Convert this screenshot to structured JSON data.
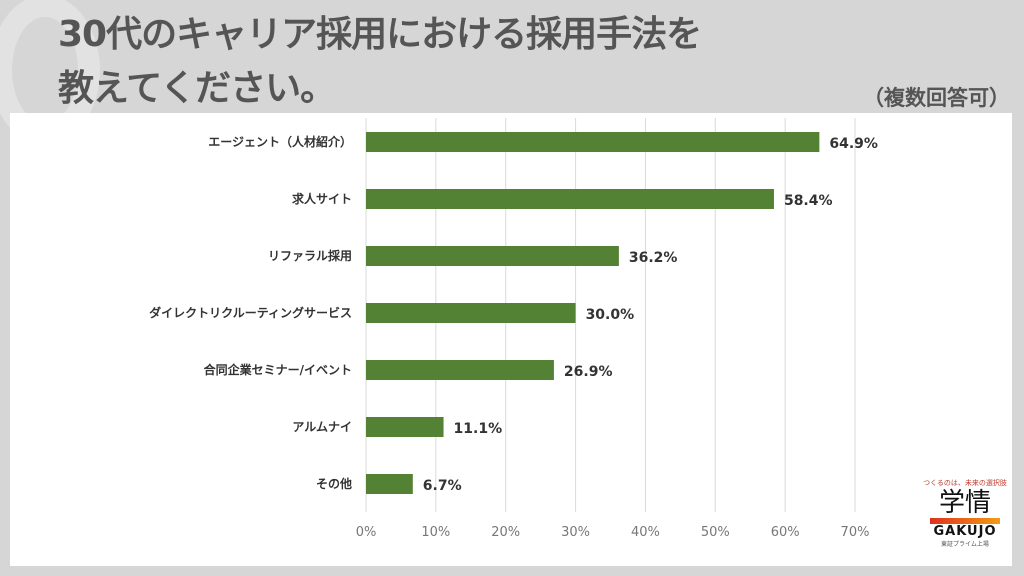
{
  "header": {
    "title_line1": "30代のキャリア採用における採用手法を",
    "title_line2": "教えてください。",
    "note": "（複数回答可）"
  },
  "logo": {
    "tagline": "つくるのは、未来の選択肢",
    "name_ja": "学情",
    "name_en": "GAKUJO",
    "sub": "東証プライム上場"
  },
  "chart_data": {
    "type": "bar",
    "orientation": "horizontal",
    "categories": [
      "エージェント（人材紹介）",
      "求人サイト",
      "リファラル採用",
      "ダイレクトリクルーティングサービス",
      "合同企業セミナー/イベント",
      "アルムナイ",
      "その他"
    ],
    "values": [
      64.9,
      58.4,
      36.2,
      30.0,
      26.9,
      11.1,
      6.7
    ],
    "data_labels": [
      "64.9%",
      "58.4%",
      "36.2%",
      "30.0%",
      "26.9%",
      "11.1%",
      "6.7%"
    ],
    "xlim": [
      0,
      70
    ],
    "xticks": [
      "0%",
      "10%",
      "20%",
      "30%",
      "40%",
      "50%",
      "60%",
      "70%"
    ],
    "grid": true,
    "bar_color": "#548235"
  }
}
